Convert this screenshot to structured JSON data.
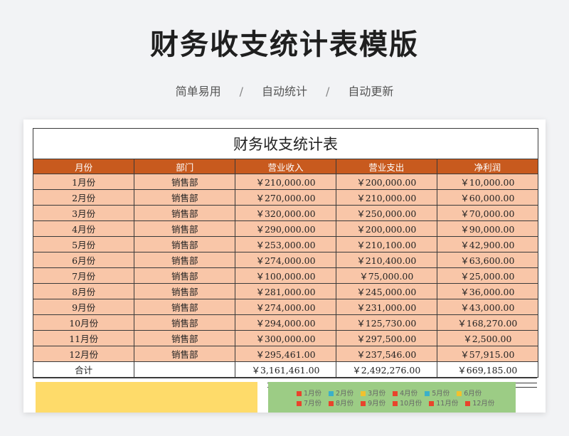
{
  "header": {
    "title": "财务收支统计表模版",
    "features": [
      "简单易用",
      "自动统计",
      "自动更新"
    ],
    "separator": "/"
  },
  "sheet": {
    "title": "财务收支统计表",
    "columns": [
      "月份",
      "部门",
      "营业收入",
      "营业支出",
      "净利润"
    ],
    "rows": [
      [
        "1月份",
        "销售部",
        "￥210,000.00",
        "￥200,000.00",
        "￥10,000.00"
      ],
      [
        "2月份",
        "销售部",
        "￥270,000.00",
        "￥210,000.00",
        "￥60,000.00"
      ],
      [
        "3月份",
        "销售部",
        "￥320,000.00",
        "￥250,000.00",
        "￥70,000.00"
      ],
      [
        "4月份",
        "销售部",
        "￥290,000.00",
        "￥200,000.00",
        "￥90,000.00"
      ],
      [
        "5月份",
        "销售部",
        "￥253,000.00",
        "￥210,100.00",
        "￥42,900.00"
      ],
      [
        "6月份",
        "销售部",
        "￥274,000.00",
        "￥210,400.00",
        "￥63,600.00"
      ],
      [
        "7月份",
        "销售部",
        "￥100,000.00",
        "￥75,000.00",
        "￥25,000.00"
      ],
      [
        "8月份",
        "销售部",
        "￥281,000.00",
        "￥245,000.00",
        "￥36,000.00"
      ],
      [
        "9月份",
        "销售部",
        "￥274,000.00",
        "￥231,000.00",
        "￥43,000.00"
      ],
      [
        "10月份",
        "销售部",
        "￥294,000.00",
        "￥125,730.00",
        "￥168,270.00"
      ],
      [
        "11月份",
        "销售部",
        "￥300,000.00",
        "￥297,500.00",
        "￥2,500.00"
      ],
      [
        "12月份",
        "销售部",
        "￥295,461.00",
        "￥237,546.00",
        "￥57,915.00"
      ]
    ],
    "total": [
      "合计",
      "",
      "￥3,161,461.00",
      "￥2,492,276.00",
      "￥669,185.00"
    ]
  },
  "legend": {
    "items": [
      {
        "label": "1月份",
        "color": "#e8442c"
      },
      {
        "label": "2月份",
        "color": "#3bb0c9"
      },
      {
        "label": "3月份",
        "color": "#f2c12e"
      },
      {
        "label": "4月份",
        "color": "#e8442c"
      },
      {
        "label": "5月份",
        "color": "#3bb0c9"
      },
      {
        "label": "6月份",
        "color": "#f2c12e"
      },
      {
        "label": "7月份",
        "color": "#e8442c"
      },
      {
        "label": "8月份",
        "color": "#e8442c"
      },
      {
        "label": "9月份",
        "color": "#e8442c"
      },
      {
        "label": "10月份",
        "color": "#e8442c"
      },
      {
        "label": "11月份",
        "color": "#e8442c"
      },
      {
        "label": "12月份",
        "color": "#e8442c"
      }
    ]
  }
}
